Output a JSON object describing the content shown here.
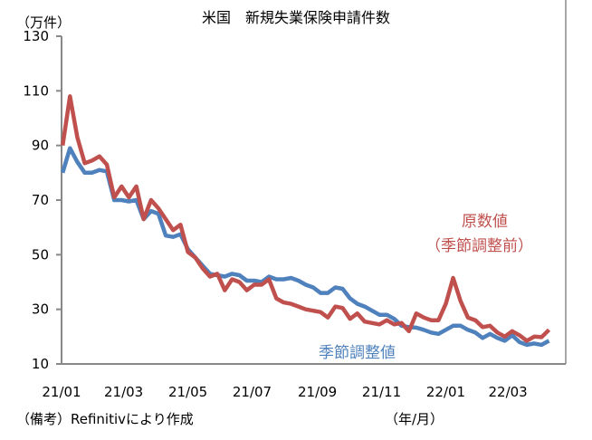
{
  "chart_data": {
    "type": "line",
    "title": "米国　新規失業保険申請件数",
    "ylabel": "（万件）",
    "xlabel": "（年/月）",
    "ylim": [
      10,
      130
    ],
    "yticks": [
      10,
      30,
      50,
      70,
      90,
      110,
      130
    ],
    "xticks": [
      {
        "date": "2021-01-01",
        "label": "21/01"
      },
      {
        "date": "2021-03-01",
        "label": "21/03"
      },
      {
        "date": "2021-05-01",
        "label": "21/05"
      },
      {
        "date": "2021-07-01",
        "label": "21/07"
      },
      {
        "date": "2021-09-01",
        "label": "21/09"
      },
      {
        "date": "2021-11-01",
        "label": "21/11"
      },
      {
        "date": "2022-01-01",
        "label": "22/01"
      },
      {
        "date": "2022-03-01",
        "label": "22/03"
      }
    ],
    "grid": false,
    "x": [
      "2021-01-02",
      "2021-01-09",
      "2021-01-16",
      "2021-01-23",
      "2021-01-30",
      "2021-02-06",
      "2021-02-13",
      "2021-02-20",
      "2021-02-27",
      "2021-03-06",
      "2021-03-13",
      "2021-03-20",
      "2021-03-27",
      "2021-04-03",
      "2021-04-10",
      "2021-04-17",
      "2021-04-24",
      "2021-05-01",
      "2021-05-08",
      "2021-05-15",
      "2021-05-22",
      "2021-05-29",
      "2021-06-05",
      "2021-06-12",
      "2021-06-19",
      "2021-06-26",
      "2021-07-03",
      "2021-07-10",
      "2021-07-17",
      "2021-07-24",
      "2021-07-31",
      "2021-08-07",
      "2021-08-14",
      "2021-08-21",
      "2021-08-28",
      "2021-09-04",
      "2021-09-11",
      "2021-09-18",
      "2021-09-25",
      "2021-10-02",
      "2021-10-09",
      "2021-10-16",
      "2021-10-23",
      "2021-10-30",
      "2021-11-06",
      "2021-11-13",
      "2021-11-20",
      "2021-11-27",
      "2021-12-04",
      "2021-12-11",
      "2021-12-18",
      "2021-12-25",
      "2022-01-01",
      "2022-01-08",
      "2022-01-15",
      "2022-01-22",
      "2022-01-29",
      "2022-02-05",
      "2022-02-12",
      "2022-02-19",
      "2022-02-26",
      "2022-03-05",
      "2022-03-12",
      "2022-03-19",
      "2022-03-26",
      "2022-04-02",
      "2022-04-09"
    ],
    "series": [
      {
        "name": "原数値（季節調整前）",
        "color": "#c0504d",
        "values": [
          90,
          108,
          93,
          83.5,
          84.5,
          86,
          83,
          71,
          75,
          71,
          75,
          63,
          70,
          67,
          63,
          59,
          61,
          51,
          49,
          45,
          42,
          43,
          37,
          41,
          40,
          37,
          39,
          39,
          41,
          34,
          32.5,
          32,
          31,
          30,
          29.5,
          29,
          27,
          31,
          30.5,
          26.5,
          28.5,
          25.5,
          25,
          24.5,
          26,
          24.5,
          25,
          22,
          28.5,
          27,
          26,
          26,
          32,
          41.5,
          33,
          27,
          26,
          23.5,
          24,
          21.5,
          20,
          22,
          20.5,
          18.5,
          20,
          19.8,
          22.5
        ]
      },
      {
        "name": "季節調整値",
        "color": "#4f81bd",
        "values": [
          80,
          89,
          84,
          80,
          80,
          81,
          80.5,
          70,
          70,
          69.5,
          70,
          63,
          66,
          65,
          57,
          56.5,
          57.5,
          52,
          49,
          46,
          43,
          42.5,
          42,
          43,
          42.5,
          40.5,
          40.5,
          40,
          42,
          41,
          41,
          41.5,
          40.5,
          39,
          38,
          36,
          36,
          38,
          37.5,
          34,
          32,
          31,
          29.5,
          28,
          28,
          26.5,
          24,
          23.5,
          23.3,
          22.5,
          21.5,
          21,
          22.5,
          24,
          24,
          22.5,
          21.5,
          19.5,
          21,
          19.5,
          18.5,
          20.5,
          18,
          17,
          17.5,
          17,
          18.5
        ]
      }
    ],
    "annotations": {
      "nsa_line1": "原数値",
      "nsa_line2": "（季節調整前）",
      "sa": "季節調整値"
    },
    "note": "（備考）Refinitivにより作成"
  }
}
